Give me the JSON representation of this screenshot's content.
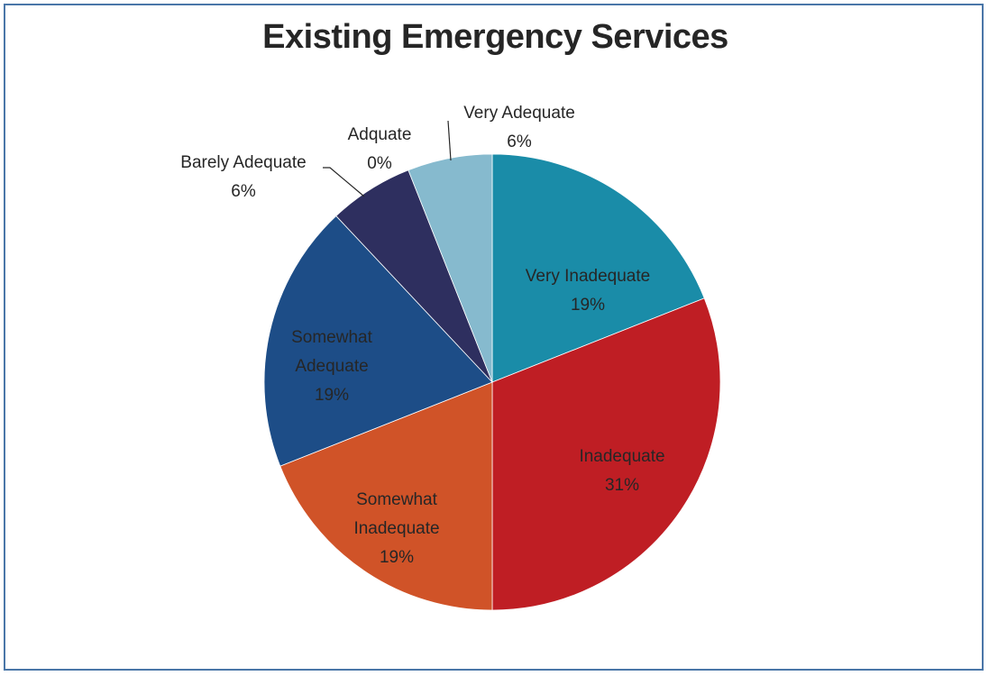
{
  "chart_data": {
    "type": "pie",
    "title": "Existing Emergency Services",
    "slices": [
      {
        "label": "Very Inadequate",
        "value": 19,
        "pct_label": "19%",
        "color": "#1a8ca8"
      },
      {
        "label": "Inadequate",
        "value": 31,
        "pct_label": "31%",
        "color": "#bf1e24"
      },
      {
        "label": "Somewhat Inadequate",
        "value": 19,
        "pct_label": "19%",
        "color": "#d05328"
      },
      {
        "label": "Somewhat Adequate",
        "value": 19,
        "pct_label": "19%",
        "color": "#1d4d87"
      },
      {
        "label": "Barely Adequate",
        "value": 6,
        "pct_label": "6%",
        "color": "#2e2f5f"
      },
      {
        "label": "Adquate",
        "value": 0,
        "pct_label": "0%",
        "color": "#4a4a8a"
      },
      {
        "label": "Very Adequate",
        "value": 6,
        "pct_label": "6%",
        "color": "#86bace"
      }
    ],
    "legend": "none",
    "data_labels": "category and percentage"
  }
}
